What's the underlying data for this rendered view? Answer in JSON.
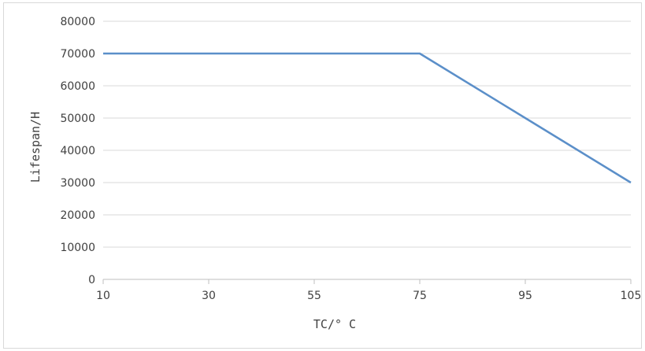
{
  "chart_data": {
    "type": "line",
    "xlabel": "TC/° C",
    "ylabel": "Lifespan/H",
    "x_ticks": [
      "10",
      "30",
      "55",
      "75",
      "95",
      "105"
    ],
    "y_ticks": [
      "0",
      "10000",
      "20000",
      "30000",
      "40000",
      "50000",
      "60000",
      "70000",
      "80000"
    ],
    "ylim": [
      0,
      80000
    ],
    "grid": "horizontal",
    "series": [
      {
        "color": "#5b8fc9",
        "x": [
          "10",
          "30",
          "55",
          "75",
          "95",
          "105"
        ],
        "values": [
          70000,
          70000,
          70000,
          70000,
          50000,
          30000
        ]
      }
    ]
  }
}
